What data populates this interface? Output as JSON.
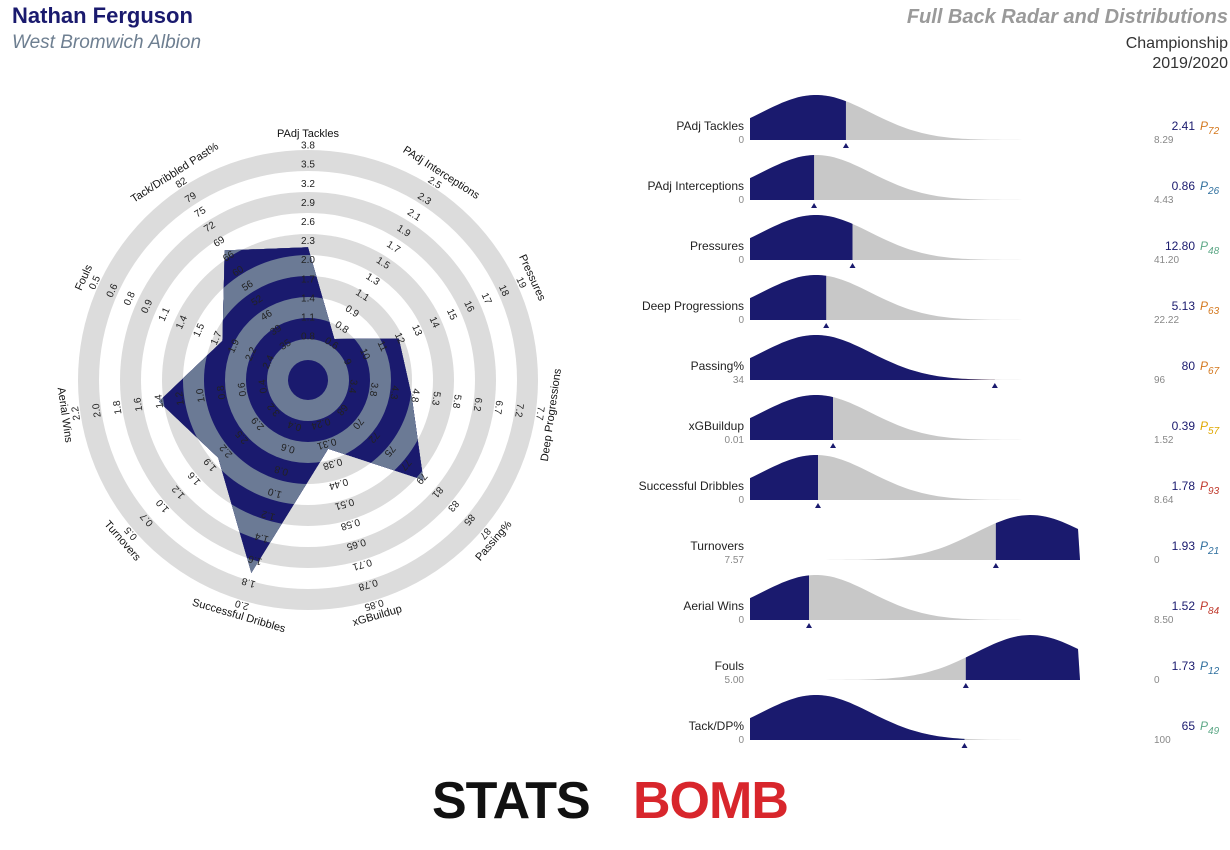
{
  "header": {
    "player_name": "Nathan Ferguson",
    "team_name": "West Bromwich Albion",
    "report_title": "Full Back Radar and Distributions",
    "competition": "Championship",
    "season": "2019/2020"
  },
  "brand": {
    "logo_left": "STATS",
    "logo_right": "BOMB"
  },
  "colors": {
    "navy": "#1a1a6e",
    "radar_fill": "#6b7a95",
    "ring_gray": "#dcdcdc",
    "dist_gray": "#c8c8c8",
    "percentile_high": "#c0392b",
    "percentile_mid_high": "#d4781e",
    "percentile_mid": "#e0a800",
    "percentile_low_mid": "#5ea887",
    "percentile_low": "#2e6f9e"
  },
  "chart_data": [
    {
      "type": "radar",
      "axes": [
        {
          "label": "PAdj Tackles",
          "ticks": [
            "0.8",
            "1.1",
            "1.4",
            "1.7",
            "2.0",
            "2.3",
            "2.6",
            "2.9",
            "3.2",
            "3.5",
            "3.8"
          ],
          "value": 2.41
        },
        {
          "label": "PAdj Interceptions",
          "ticks": [
            "0.6",
            "0.8",
            "0.9",
            "1.1",
            "1.3",
            "1.5",
            "1.7",
            "1.9",
            "2.1",
            "2.3",
            "2.5"
          ],
          "value": 0.86
        },
        {
          "label": "Pressures",
          "ticks": [
            "9",
            "10",
            "11",
            "12",
            "13",
            "14",
            "15",
            "16",
            "17",
            "18",
            "19"
          ],
          "value": 12.8
        },
        {
          "label": "Deep Progressions",
          "ticks": [
            "3.4",
            "3.8",
            "4.3",
            "4.8",
            "5.3",
            "5.8",
            "6.2",
            "6.7",
            "7.2",
            "7.7"
          ],
          "value": 5.13
        },
        {
          "label": "Passing%",
          "ticks": [
            "68",
            "70",
            "72",
            "75",
            "77",
            "79",
            "81",
            "83",
            "85",
            "87"
          ],
          "value": 80
        },
        {
          "label": "xGBuildup",
          "ticks": [
            "0.24",
            "0.31",
            "0.38",
            "0.44",
            "0.51",
            "0.58",
            "0.65",
            "0.71",
            "0.78",
            "0.85"
          ],
          "value": 0.39
        },
        {
          "label": "Successful Dribbles",
          "ticks": [
            "0.4",
            "0.6",
            "0.8",
            "1.0",
            "1.2",
            "1.4",
            "1.6",
            "1.8",
            "2.0"
          ],
          "value": 1.78
        },
        {
          "label": "Turnovers",
          "ticks": [
            "3.2",
            "2.9",
            "2.5",
            "2.2",
            "1.9",
            "1.6",
            "1.2",
            "1.0",
            "0.7",
            "0.5"
          ],
          "value": 1.93
        },
        {
          "label": "Aerial Wins",
          "ticks": [
            "0.4",
            "0.6",
            "0.8",
            "1.0",
            "1.2",
            "1.4",
            "1.6",
            "1.8",
            "2.0",
            "2.2"
          ],
          "value": 1.52
        },
        {
          "label": "Fouls",
          "ticks": [
            "2.4",
            "2.2",
            "1.9",
            "1.7",
            "1.5",
            "1.4",
            "1.1",
            "0.9",
            "0.8",
            "0.6",
            "0.5"
          ],
          "value": 1.73
        },
        {
          "label": "Tack/Dribbled Past%",
          "ticks": [
            "35",
            "39",
            "46",
            "52",
            "56",
            "60",
            "66",
            "69",
            "72",
            "75",
            "79",
            "82"
          ],
          "value": 65
        }
      ]
    },
    {
      "type": "distribution",
      "rows": [
        {
          "label": "PAdj Tackles",
          "min": "0",
          "max": "8.29",
          "value": "2.41",
          "percentile": "72"
        },
        {
          "label": "PAdj Interceptions",
          "min": "0",
          "max": "4.43",
          "value": "0.86",
          "percentile": "26"
        },
        {
          "label": "Pressures",
          "min": "0",
          "max": "41.20",
          "value": "12.80",
          "percentile": "48"
        },
        {
          "label": "Deep Progressions",
          "min": "0",
          "max": "22.22",
          "value": "5.13",
          "percentile": "63"
        },
        {
          "label": "Passing%",
          "min": "34",
          "max": "96",
          "value": "80",
          "percentile": "67"
        },
        {
          "label": "xGBuildup",
          "min": "0.01",
          "max": "1.52",
          "value": "0.39",
          "percentile": "57"
        },
        {
          "label": "Successful Dribbles",
          "min": "0",
          "max": "8.64",
          "value": "1.78",
          "percentile": "93"
        },
        {
          "label": "Turnovers",
          "min": "7.57",
          "max": "0",
          "value": "1.93",
          "percentile": "21"
        },
        {
          "label": "Aerial Wins",
          "min": "0",
          "max": "8.50",
          "value": "1.52",
          "percentile": "84"
        },
        {
          "label": "Fouls",
          "min": "5.00",
          "max": "0",
          "value": "1.73",
          "percentile": "12"
        },
        {
          "label": "Tack/DP%",
          "min": "0",
          "max": "100",
          "value": "65",
          "percentile": "49"
        }
      ]
    }
  ]
}
